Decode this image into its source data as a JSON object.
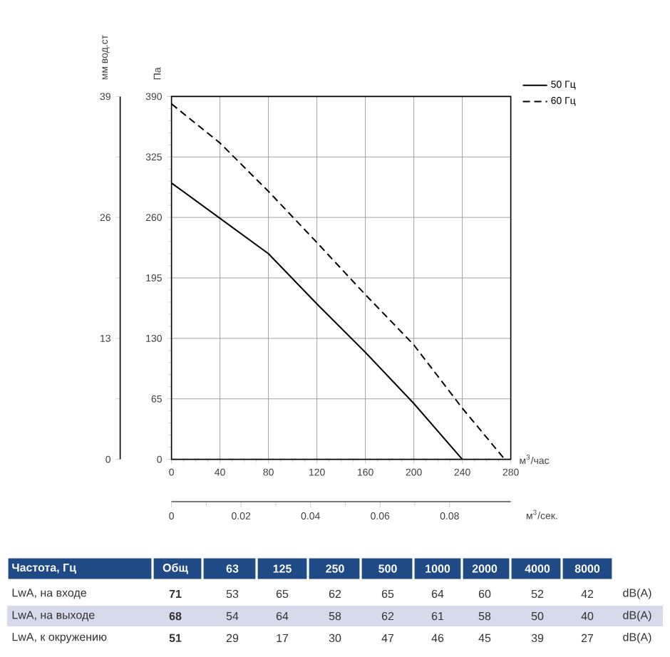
{
  "chart_data": {
    "type": "line",
    "x": [
      0,
      40,
      80,
      120,
      160,
      200,
      240,
      275
    ],
    "series": [
      {
        "name": "50 Гц",
        "color": "#000000",
        "line_style": "solid",
        "values": [
          297,
          259,
          221,
          167,
          115,
          60,
          0,
          null
        ]
      },
      {
        "name": "60 Гц",
        "color": "#000000",
        "line_style": "dashed",
        "values": [
          382,
          340,
          288,
          233,
          177,
          123,
          55,
          0
        ]
      }
    ],
    "xlim": [
      0,
      280
    ],
    "xticks": [
      0,
      40,
      80,
      120,
      160,
      200,
      240,
      280
    ],
    "ylim": [
      0,
      390
    ],
    "yticks": [
      0,
      65,
      130,
      195,
      260,
      325,
      390
    ],
    "y2lim": [
      0,
      39
    ],
    "y2ticks": [
      0,
      13,
      26,
      39
    ],
    "x2lim": [
      0,
      0.0976
    ],
    "x2ticks": [
      0,
      0.02,
      0.04,
      0.06,
      0.08
    ],
    "xlabel": "м$^{3}$/час",
    "x2label": "м$^{3}$/сек.",
    "ylabel": "Па",
    "y2label": "мм вод.ст",
    "grid": true,
    "legend": "top right",
    "annotations": [
      "Частота, Гц",
      "Общ",
      "63",
      "125",
      "250",
      "500",
      "1000",
      "2000",
      "4000",
      "8000",
      "LwA, на входе",
      "71",
      "53",
      "65",
      "62",
      "65",
      "64",
      "60",
      "52",
      "42",
      "dB(A)",
      "LwA, на выходе",
      "68",
      "54",
      "64",
      "58",
      "62",
      "61",
      "58",
      "50",
      "40",
      "dB(A)",
      "LwA, к окружению",
      "51",
      "29",
      "17",
      "30",
      "47",
      "46",
      "45",
      "39",
      "27",
      "dB(A)"
    ]
  }
}
